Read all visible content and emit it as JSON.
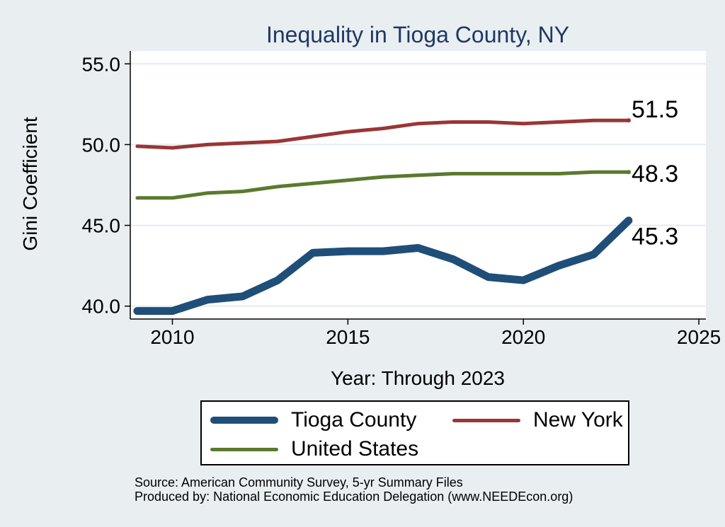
{
  "chart_data": {
    "type": "line",
    "title": "Inequality in Tioga County, NY",
    "xlabel": "Year: Through 2023",
    "ylabel": "Gini Coefficient",
    "xlim": [
      2008.8,
      2025.2
    ],
    "ylim": [
      39.2,
      55.8
    ],
    "x_ticks": [
      "2010",
      "2015",
      "2020",
      "2025"
    ],
    "y_ticks": [
      "40.0",
      "45.0",
      "50.0",
      "55.0"
    ],
    "x": [
      2009,
      2010,
      2011,
      2012,
      2013,
      2014,
      2015,
      2016,
      2017,
      2018,
      2019,
      2020,
      2021,
      2022,
      2023
    ],
    "series": [
      {
        "name": "Tioga County",
        "color": "#1f4e79",
        "width": 11,
        "values": [
          39.7,
          39.7,
          40.4,
          40.6,
          41.6,
          43.3,
          43.4,
          43.4,
          43.6,
          42.9,
          41.8,
          41.6,
          42.5,
          43.2,
          45.3
        ],
        "end_label": "45.3"
      },
      {
        "name": "New York",
        "color": "#9b3535",
        "width": 5,
        "values": [
          49.9,
          49.8,
          50.0,
          50.1,
          50.2,
          50.5,
          50.8,
          51.0,
          51.3,
          51.4,
          51.4,
          51.3,
          51.4,
          51.5,
          51.5
        ],
        "end_label": "51.5"
      },
      {
        "name": "United States",
        "color": "#5a7a2e",
        "width": 5,
        "values": [
          46.7,
          46.7,
          47.0,
          47.1,
          47.4,
          47.6,
          47.8,
          48.0,
          48.1,
          48.2,
          48.2,
          48.2,
          48.2,
          48.3,
          48.3
        ],
        "end_label": "48.3"
      }
    ],
    "legend": {
      "position": "bottom",
      "entries": [
        "Tioga County",
        "New York",
        "United States"
      ]
    },
    "grid": true
  },
  "source_line": "Source: American Community Survey, 5-yr Summary Files",
  "produced_line": "Produced by: National Economic Education Delegation (www.NEEDEcon.org)"
}
